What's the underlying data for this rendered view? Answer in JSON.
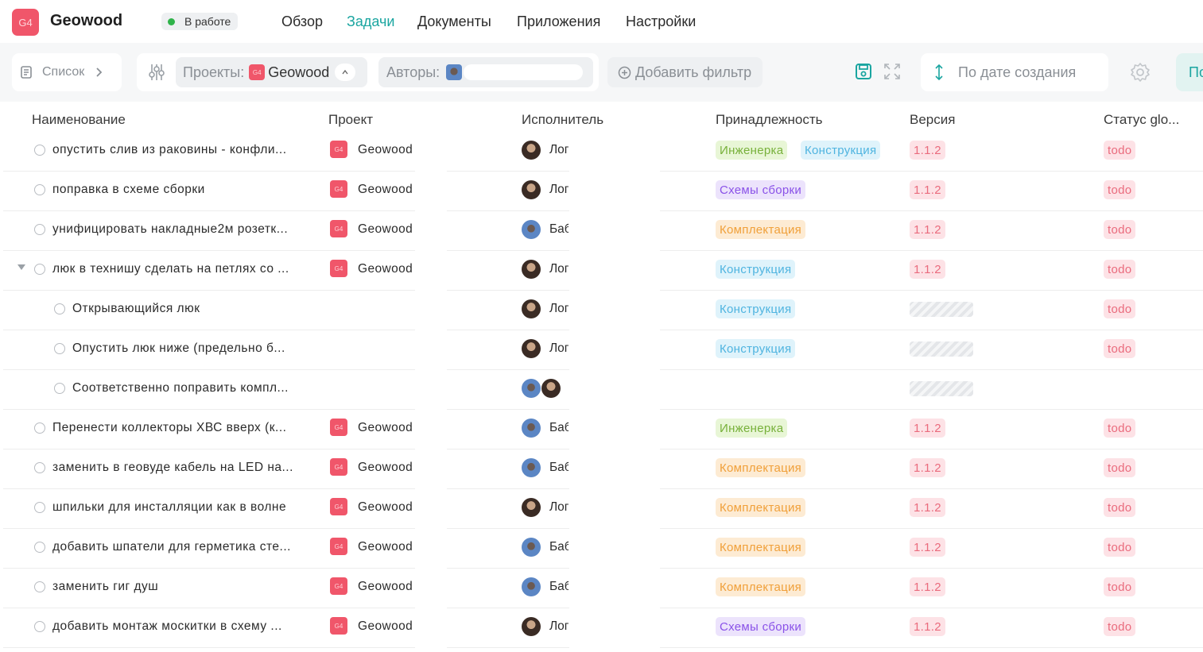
{
  "header": {
    "project_logo": "G4",
    "project_title": "Geowood",
    "status": "В работе",
    "nav": [
      "Обзор",
      "Задачи",
      "Документы",
      "Приложения",
      "Настройки"
    ],
    "active_nav": "Задачи"
  },
  "toolbar": {
    "view_label": "Список",
    "projects_label": "Проекты:",
    "projects_value": "Geowood",
    "projects_logo": "G4",
    "authors_label": "Авторы:",
    "add_filter": "Добавить фильтр",
    "sort_label": "По дате создания",
    "cut_button_label": "По"
  },
  "table": {
    "columns": [
      "Наименование",
      "Проект",
      "Исполнитель",
      "Принадлежность",
      "Версия",
      "Статус glo..."
    ],
    "rows": [
      {
        "name": "опустить слив из раковины - конфли...",
        "project": "Geowood",
        "exec": "Лог",
        "tags": [
          "Инженерка",
          "Конструкция"
        ],
        "version": "1.1.2",
        "status": "todo",
        "indent": 0
      },
      {
        "name": "поправка в схеме сборки",
        "project": "Geowood",
        "exec": "Лог",
        "tags": [
          "Схемы сборки"
        ],
        "version": "1.1.2",
        "status": "todo",
        "indent": 0
      },
      {
        "name": "унифицировать накладные2м розетк...",
        "project": "Geowood",
        "exec": "Баб",
        "tags": [
          "Комплектация"
        ],
        "version": "1.1.2",
        "status": "todo",
        "indent": 0
      },
      {
        "name": "люк в технишу сделать на петлях со ...",
        "project": "Geowood",
        "exec": "Лог",
        "tags": [
          "Конструкция"
        ],
        "version": "1.1.2",
        "status": "todo",
        "indent": 0
      },
      {
        "name": "Открывающийся люк",
        "project": "",
        "exec": "Лог",
        "tags": [
          "Конструкция"
        ],
        "version": "",
        "status": "todo",
        "indent": 1
      },
      {
        "name": "Опустить люк ниже (предельно б...",
        "project": "",
        "exec": "Лог",
        "tags": [
          "Конструкция"
        ],
        "version": "",
        "status": "todo",
        "indent": 1
      },
      {
        "name": "Соответственно поправить компл...",
        "project": "",
        "exec": "",
        "tags": [],
        "version": "",
        "status": "",
        "indent": 1
      },
      {
        "name": "Перенести коллекторы ХВС вверх (к...",
        "project": "Geowood",
        "exec": "Баб",
        "tags": [
          "Инженерка"
        ],
        "version": "1.1.2",
        "status": "todo",
        "indent": 0
      },
      {
        "name": "заменить в геовуде кабель на LED на...",
        "project": "Geowood",
        "exec": "Баб",
        "tags": [
          "Комплектация"
        ],
        "version": "1.1.2",
        "status": "todo",
        "indent": 0
      },
      {
        "name": "шпильки для инсталляции как в волне",
        "project": "Geowood",
        "exec": "Лог",
        "tags": [
          "Комплектация"
        ],
        "version": "1.1.2",
        "status": "todo",
        "indent": 0
      },
      {
        "name": "добавить шпатели для герметика сте...",
        "project": "Geowood",
        "exec": "Баб",
        "tags": [
          "Комплектация"
        ],
        "version": "1.1.2",
        "status": "todo",
        "indent": 0
      },
      {
        "name": "заменить гиг душ",
        "project": "Geowood",
        "exec": "Баб",
        "tags": [
          "Комплектация"
        ],
        "version": "1.1.2",
        "status": "todo",
        "indent": 0
      },
      {
        "name": "добавить монтаж москитки в схему ...",
        "project": "Geowood",
        "exec": "Лог",
        "tags": [
          "Схемы сборки"
        ],
        "version": "1.1.2",
        "status": "todo",
        "indent": 0
      }
    ]
  },
  "colors": {
    "accent": "#1aa5a0",
    "project_red": "#f0566a",
    "status_green": "#2fb34a"
  }
}
